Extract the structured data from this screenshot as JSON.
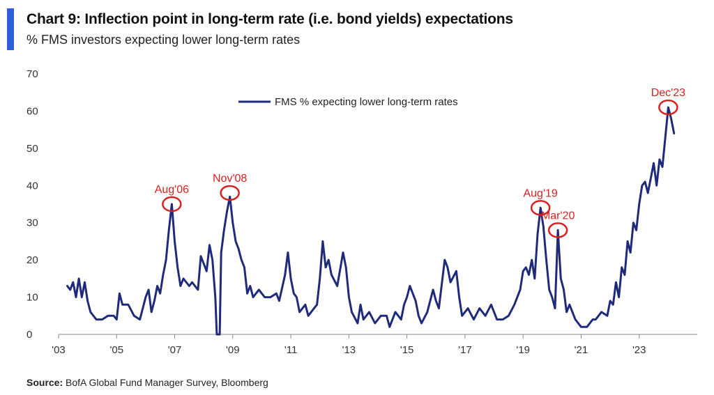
{
  "header": {
    "title": "Chart 9: Inflection point in long-term rate (i.e. bond yields) expectations",
    "subtitle": "% FMS investors expecting lower long-term rates"
  },
  "footer": {
    "source_label": "Source:",
    "source_text": "BofA Global Fund Manager Survey, Bloomberg"
  },
  "colors": {
    "line": "#1f2a7a",
    "annotation": "#d92020",
    "accent": "#2f5fd8"
  },
  "chart_data": {
    "type": "line",
    "ylim": [
      0,
      70
    ],
    "yticks": [
      0,
      10,
      20,
      30,
      40,
      50,
      60,
      70
    ],
    "xlim": [
      2003,
      2025
    ],
    "xticks": [
      {
        "v": 2003,
        "label": "'03"
      },
      {
        "v": 2005,
        "label": "'05"
      },
      {
        "v": 2007,
        "label": "'07"
      },
      {
        "v": 2009,
        "label": "'09"
      },
      {
        "v": 2011,
        "label": "'11"
      },
      {
        "v": 2013,
        "label": "'13"
      },
      {
        "v": 2015,
        "label": "'15"
      },
      {
        "v": 2017,
        "label": "'17"
      },
      {
        "v": 2019,
        "label": "'19"
      },
      {
        "v": 2021,
        "label": "'21"
      },
      {
        "v": 2023,
        "label": "'23"
      }
    ],
    "grid": false,
    "legend": "top-center",
    "series": [
      {
        "name": "FMS % expecting lower long-term rates",
        "points": [
          [
            2003.3,
            13
          ],
          [
            2003.4,
            12
          ],
          [
            2003.5,
            14
          ],
          [
            2003.6,
            10
          ],
          [
            2003.7,
            15
          ],
          [
            2003.8,
            10
          ],
          [
            2003.9,
            14
          ],
          [
            2004.0,
            9
          ],
          [
            2004.1,
            6
          ],
          [
            2004.3,
            4
          ],
          [
            2004.5,
            4
          ],
          [
            2004.7,
            5
          ],
          [
            2004.9,
            5
          ],
          [
            2005.0,
            4
          ],
          [
            2005.1,
            11
          ],
          [
            2005.2,
            8
          ],
          [
            2005.4,
            8
          ],
          [
            2005.6,
            5
          ],
          [
            2005.8,
            4
          ],
          [
            2006.0,
            10
          ],
          [
            2006.1,
            12
          ],
          [
            2006.2,
            6
          ],
          [
            2006.3,
            9
          ],
          [
            2006.4,
            13
          ],
          [
            2006.5,
            11
          ],
          [
            2006.6,
            16
          ],
          [
            2006.7,
            20
          ],
          [
            2006.8,
            28
          ],
          [
            2006.9,
            35
          ],
          [
            2007.0,
            25
          ],
          [
            2007.1,
            18
          ],
          [
            2007.2,
            13
          ],
          [
            2007.3,
            15
          ],
          [
            2007.5,
            13
          ],
          [
            2007.6,
            14
          ],
          [
            2007.8,
            12
          ],
          [
            2007.9,
            21
          ],
          [
            2008.0,
            19
          ],
          [
            2008.1,
            17
          ],
          [
            2008.2,
            24
          ],
          [
            2008.3,
            20
          ],
          [
            2008.4,
            10
          ],
          [
            2008.45,
            0
          ],
          [
            2008.55,
            0
          ],
          [
            2008.6,
            22
          ],
          [
            2008.7,
            28
          ],
          [
            2008.8,
            33
          ],
          [
            2008.9,
            37
          ],
          [
            2009.0,
            30
          ],
          [
            2009.1,
            25
          ],
          [
            2009.2,
            23
          ],
          [
            2009.3,
            20
          ],
          [
            2009.4,
            18
          ],
          [
            2009.5,
            11
          ],
          [
            2009.6,
            13
          ],
          [
            2009.7,
            10
          ],
          [
            2009.9,
            12
          ],
          [
            2010.1,
            10
          ],
          [
            2010.3,
            10
          ],
          [
            2010.5,
            11
          ],
          [
            2010.6,
            9
          ],
          [
            2010.8,
            16
          ],
          [
            2010.9,
            22
          ],
          [
            2011.0,
            15
          ],
          [
            2011.1,
            11
          ],
          [
            2011.2,
            10
          ],
          [
            2011.3,
            6
          ],
          [
            2011.5,
            8
          ],
          [
            2011.6,
            5
          ],
          [
            2011.8,
            7
          ],
          [
            2011.9,
            8
          ],
          [
            2012.0,
            15
          ],
          [
            2012.1,
            25
          ],
          [
            2012.2,
            18
          ],
          [
            2012.3,
            20
          ],
          [
            2012.4,
            16
          ],
          [
            2012.6,
            13
          ],
          [
            2012.8,
            22
          ],
          [
            2012.9,
            18
          ],
          [
            2013.0,
            10
          ],
          [
            2013.1,
            6
          ],
          [
            2013.3,
            3
          ],
          [
            2013.4,
            8
          ],
          [
            2013.5,
            4
          ],
          [
            2013.7,
            6
          ],
          [
            2013.9,
            3
          ],
          [
            2014.1,
            5
          ],
          [
            2014.3,
            5
          ],
          [
            2014.4,
            2
          ],
          [
            2014.6,
            6
          ],
          [
            2014.8,
            4
          ],
          [
            2014.9,
            8
          ],
          [
            2015.0,
            10
          ],
          [
            2015.1,
            13
          ],
          [
            2015.3,
            9
          ],
          [
            2015.4,
            5
          ],
          [
            2015.5,
            3
          ],
          [
            2015.7,
            6
          ],
          [
            2015.9,
            12
          ],
          [
            2016.0,
            9
          ],
          [
            2016.1,
            7
          ],
          [
            2016.3,
            20
          ],
          [
            2016.4,
            18
          ],
          [
            2016.5,
            14
          ],
          [
            2016.7,
            17
          ],
          [
            2016.8,
            10
          ],
          [
            2016.9,
            5
          ],
          [
            2017.1,
            7
          ],
          [
            2017.3,
            4
          ],
          [
            2017.5,
            7
          ],
          [
            2017.7,
            5
          ],
          [
            2017.9,
            8
          ],
          [
            2018.1,
            4
          ],
          [
            2018.3,
            4
          ],
          [
            2018.5,
            5
          ],
          [
            2018.7,
            8
          ],
          [
            2018.9,
            12
          ],
          [
            2019.0,
            17
          ],
          [
            2019.1,
            18
          ],
          [
            2019.2,
            16
          ],
          [
            2019.3,
            20
          ],
          [
            2019.4,
            15
          ],
          [
            2019.5,
            27
          ],
          [
            2019.6,
            34
          ],
          [
            2019.7,
            29
          ],
          [
            2019.8,
            20
          ],
          [
            2019.9,
            12
          ],
          [
            2020.0,
            10
          ],
          [
            2020.1,
            7
          ],
          [
            2020.2,
            28
          ],
          [
            2020.3,
            15
          ],
          [
            2020.4,
            12
          ],
          [
            2020.5,
            6
          ],
          [
            2020.6,
            8
          ],
          [
            2020.8,
            4
          ],
          [
            2020.9,
            3
          ],
          [
            2021.0,
            2
          ],
          [
            2021.2,
            2
          ],
          [
            2021.4,
            4
          ],
          [
            2021.5,
            4
          ],
          [
            2021.7,
            6
          ],
          [
            2021.9,
            5
          ],
          [
            2022.0,
            9
          ],
          [
            2022.1,
            8
          ],
          [
            2022.2,
            14
          ],
          [
            2022.3,
            10
          ],
          [
            2022.4,
            18
          ],
          [
            2022.5,
            16
          ],
          [
            2022.6,
            25
          ],
          [
            2022.7,
            22
          ],
          [
            2022.8,
            30
          ],
          [
            2022.9,
            28
          ],
          [
            2023.0,
            35
          ],
          [
            2023.1,
            40
          ],
          [
            2023.2,
            41
          ],
          [
            2023.3,
            38
          ],
          [
            2023.4,
            42
          ],
          [
            2023.5,
            46
          ],
          [
            2023.6,
            40
          ],
          [
            2023.7,
            47
          ],
          [
            2023.8,
            45
          ],
          [
            2023.9,
            53
          ],
          [
            2024.0,
            61
          ],
          [
            2024.1,
            58
          ],
          [
            2024.2,
            54
          ]
        ]
      }
    ],
    "annotations": [
      {
        "label": "Aug'06",
        "x": 2006.9,
        "y": 35
      },
      {
        "label": "Nov'08",
        "x": 2008.9,
        "y": 38
      },
      {
        "label": "Aug'19",
        "x": 2019.6,
        "y": 34
      },
      {
        "label": "Mar'20",
        "x": 2020.2,
        "y": 28
      },
      {
        "label": "Dec'23",
        "x": 2024.0,
        "y": 61
      }
    ]
  }
}
